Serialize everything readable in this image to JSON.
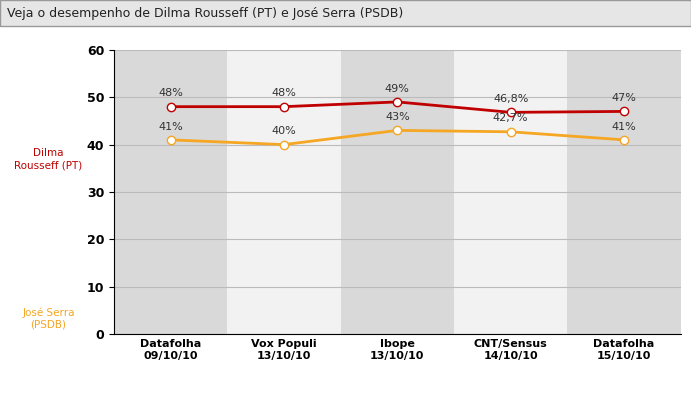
{
  "chart_data": {
    "type": "line",
    "title": "Veja o desempenho de Dilma Rousseff (PT) e José Serra (PSDB)",
    "categories": [
      "Datafolha\n09/10/10",
      "Vox Populi\n13/10/10",
      "Ibope\n13/10/10",
      "CNT/Sensus\n14/10/10",
      "Datafolha\n15/10/10"
    ],
    "series": [
      {
        "name": "Dilma\nRousseff (PT)",
        "color": "#c00000",
        "marker": "o",
        "values": [
          48,
          48,
          49,
          46.8,
          47
        ],
        "value_labels": [
          "48%",
          "48%",
          "49%",
          "46,8%",
          "47%"
        ]
      },
      {
        "name": "José Serra\n(PSDB)",
        "color": "#f5a623",
        "marker": "o",
        "values": [
          41,
          40,
          43,
          42.7,
          41
        ],
        "value_labels": [
          "41%",
          "40%",
          "43%",
          "42,7%",
          "41%"
        ]
      }
    ],
    "ylim": [
      0,
      60
    ],
    "yticks": [
      0,
      10,
      20,
      30,
      40,
      50,
      60
    ],
    "grid": true,
    "data_labels": true
  }
}
